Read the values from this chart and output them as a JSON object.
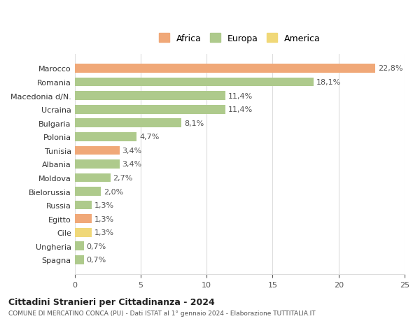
{
  "categories": [
    "Spagna",
    "Ungheria",
    "Cile",
    "Egitto",
    "Russia",
    "Bielorussia",
    "Moldova",
    "Albania",
    "Tunisia",
    "Polonia",
    "Bulgaria",
    "Ucraina",
    "Macedonia d/N.",
    "Romania",
    "Marocco"
  ],
  "values": [
    0.7,
    0.7,
    1.3,
    1.3,
    1.3,
    2.0,
    2.7,
    3.4,
    3.4,
    4.7,
    8.1,
    11.4,
    11.4,
    18.1,
    22.8
  ],
  "continents": [
    "Europa",
    "Europa",
    "America",
    "Africa",
    "Europa",
    "Europa",
    "Europa",
    "Europa",
    "Africa",
    "Europa",
    "Europa",
    "Europa",
    "Europa",
    "Europa",
    "Africa"
  ],
  "colors": {
    "Africa": "#F0A878",
    "Europa": "#AECA8C",
    "America": "#F0D878"
  },
  "labels": [
    "0,7%",
    "0,7%",
    "1,3%",
    "1,3%",
    "1,3%",
    "2,0%",
    "2,7%",
    "3,4%",
    "3,4%",
    "4,7%",
    "8,1%",
    "11,4%",
    "11,4%",
    "18,1%",
    "22,8%"
  ],
  "title1": "Cittadini Stranieri per Cittadinanza - 2024",
  "title2": "COMUNE DI MERCATINO CONCA (PU) - Dati ISTAT al 1° gennaio 2024 - Elaborazione TUTTITALIA.IT",
  "xlim": [
    0,
    25
  ],
  "xticks": [
    0,
    5,
    10,
    15,
    20,
    25
  ],
  "legend_labels": [
    "Africa",
    "Europa",
    "America"
  ],
  "background_color": "#ffffff",
  "grid_color": "#dddddd"
}
